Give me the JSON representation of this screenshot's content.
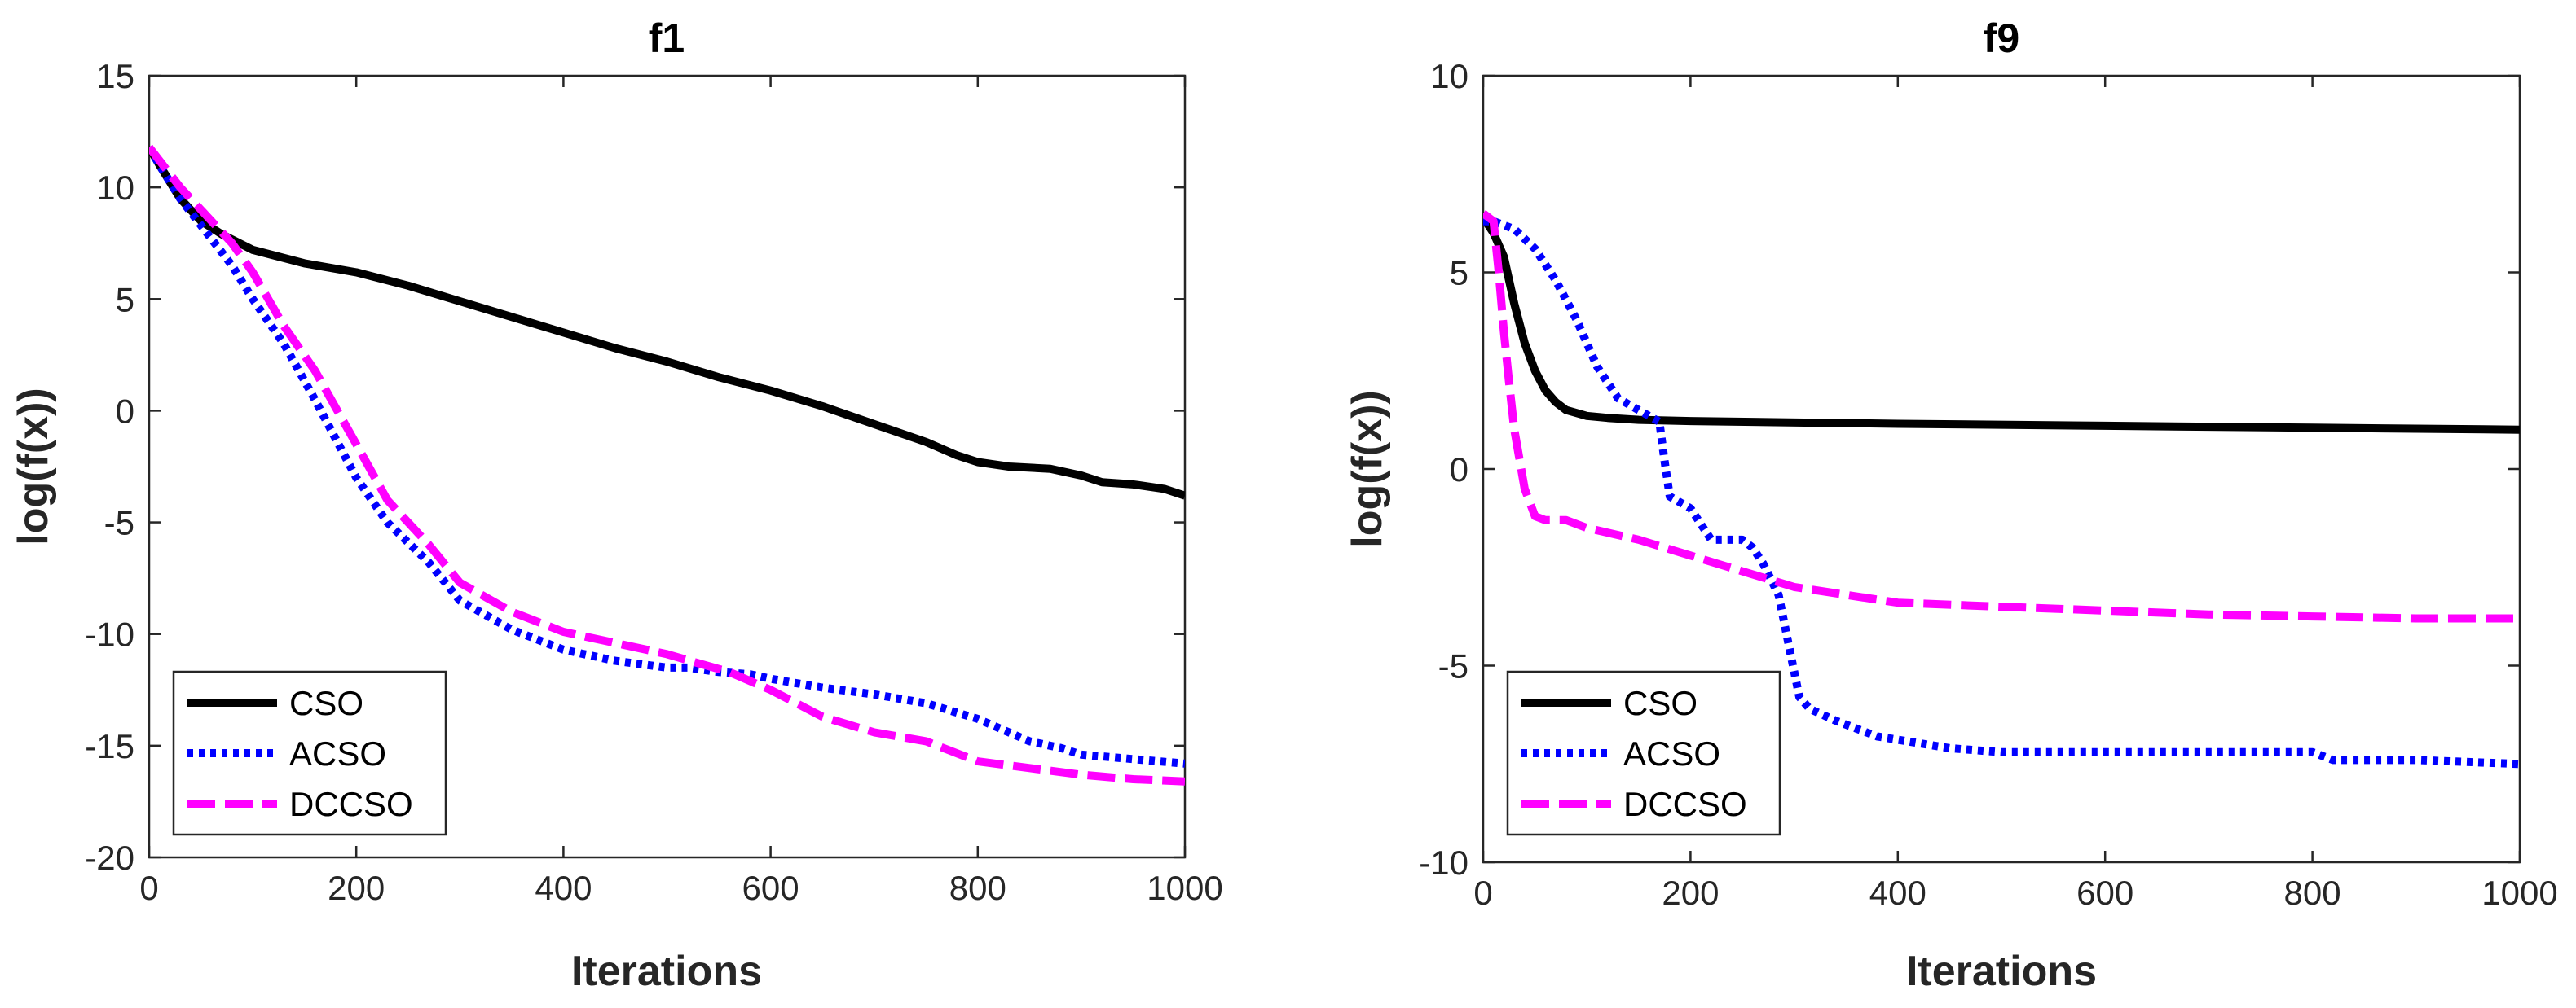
{
  "chart_data": [
    {
      "type": "line",
      "title": "f1",
      "xlabel": "Iterations",
      "ylabel": "log(f(x))",
      "xlim": [
        0,
        1000
      ],
      "ylim": [
        -20,
        15
      ],
      "xticks": [
        0,
        200,
        400,
        600,
        800,
        1000
      ],
      "yticks": [
        -20,
        -15,
        -10,
        -5,
        0,
        5,
        10,
        15
      ],
      "legend_position": "bottom-left",
      "series": [
        {
          "name": "CSO",
          "color": "#000000",
          "style": "solid",
          "x": [
            0,
            10,
            30,
            50,
            70,
            100,
            150,
            200,
            250,
            300,
            350,
            400,
            450,
            500,
            550,
            600,
            650,
            700,
            750,
            780,
            800,
            830,
            870,
            900,
            920,
            950,
            980,
            1000
          ],
          "y": [
            11.8,
            11.0,
            9.5,
            8.5,
            7.9,
            7.2,
            6.6,
            6.2,
            5.6,
            4.9,
            4.2,
            3.5,
            2.8,
            2.2,
            1.5,
            0.9,
            0.2,
            -0.6,
            -1.4,
            -2.0,
            -2.3,
            -2.5,
            -2.6,
            -2.9,
            -3.2,
            -3.3,
            -3.5,
            -3.8
          ]
        },
        {
          "name": "ACSO",
          "color": "#0000FF",
          "style": "dotted",
          "x": [
            0,
            10,
            30,
            50,
            80,
            100,
            130,
            160,
            200,
            230,
            270,
            300,
            350,
            400,
            450,
            500,
            520,
            550,
            580,
            600,
            650,
            700,
            750,
            800,
            850,
            880,
            900,
            950,
            1000
          ],
          "y": [
            11.8,
            11.0,
            9.5,
            8.3,
            6.5,
            5.0,
            3.0,
            0.5,
            -3.0,
            -5.0,
            -6.8,
            -8.5,
            -9.8,
            -10.7,
            -11.2,
            -11.5,
            -11.5,
            -11.7,
            -11.8,
            -12.0,
            -12.4,
            -12.7,
            -13.1,
            -13.8,
            -14.8,
            -15.1,
            -15.4,
            -15.6,
            -15.8
          ]
        },
        {
          "name": "DCCSO",
          "color": "#FF00FF",
          "style": "dashed",
          "x": [
            0,
            10,
            30,
            50,
            80,
            100,
            130,
            160,
            200,
            230,
            270,
            300,
            350,
            400,
            450,
            500,
            530,
            560,
            600,
            650,
            700,
            750,
            800,
            850,
            900,
            950,
            1000
          ],
          "y": [
            11.8,
            11.2,
            10.0,
            9.0,
            7.5,
            6.2,
            3.8,
            1.8,
            -1.5,
            -4.0,
            -6.0,
            -7.7,
            -9.0,
            -9.9,
            -10.4,
            -10.9,
            -11.3,
            -11.7,
            -12.5,
            -13.7,
            -14.4,
            -14.8,
            -15.7,
            -16.0,
            -16.3,
            -16.5,
            -16.6
          ]
        }
      ]
    },
    {
      "type": "line",
      "title": "f9",
      "xlabel": "Iterations",
      "ylabel": "log(f(x))",
      "xlim": [
        0,
        1000
      ],
      "ylim": [
        -10,
        10
      ],
      "xticks": [
        0,
        200,
        400,
        600,
        800,
        1000
      ],
      "yticks": [
        -10,
        -5,
        0,
        5,
        10
      ],
      "legend_position": "bottom-left",
      "series": [
        {
          "name": "CSO",
          "color": "#000000",
          "style": "solid",
          "x": [
            0,
            10,
            20,
            25,
            30,
            40,
            50,
            60,
            70,
            80,
            100,
            120,
            150,
            200,
            400,
            600,
            800,
            1000
          ],
          "y": [
            6.4,
            6.0,
            5.4,
            4.8,
            4.2,
            3.2,
            2.5,
            2.0,
            1.7,
            1.5,
            1.35,
            1.3,
            1.25,
            1.22,
            1.15,
            1.1,
            1.05,
            1.0
          ]
        },
        {
          "name": "ACSO",
          "color": "#0000FF",
          "style": "dotted",
          "x": [
            0,
            10,
            20,
            30,
            50,
            70,
            90,
            110,
            130,
            150,
            170,
            175,
            180,
            200,
            220,
            250,
            260,
            270,
            285,
            295,
            305,
            315,
            340,
            380,
            450,
            500,
            600,
            700,
            800,
            820,
            900,
            1000
          ],
          "y": [
            6.3,
            6.3,
            6.2,
            6.1,
            5.6,
            4.8,
            3.8,
            2.6,
            1.8,
            1.5,
            1.2,
            0.2,
            -0.7,
            -1.0,
            -1.8,
            -1.8,
            -2.0,
            -2.4,
            -3.2,
            -4.5,
            -5.8,
            -6.1,
            -6.4,
            -6.8,
            -7.1,
            -7.2,
            -7.2,
            -7.2,
            -7.2,
            -7.4,
            -7.4,
            -7.5
          ]
        },
        {
          "name": "DCCSO",
          "color": "#FF00FF",
          "style": "dashed",
          "x": [
            0,
            10,
            15,
            20,
            25,
            30,
            40,
            50,
            60,
            80,
            100,
            150,
            200,
            250,
            300,
            350,
            400,
            500,
            600,
            700,
            800,
            900,
            1000
          ],
          "y": [
            6.5,
            6.3,
            5.0,
            3.5,
            2.2,
            1.0,
            -0.5,
            -1.2,
            -1.3,
            -1.3,
            -1.5,
            -1.8,
            -2.2,
            -2.6,
            -3.0,
            -3.2,
            -3.4,
            -3.5,
            -3.6,
            -3.7,
            -3.75,
            -3.8,
            -3.8
          ]
        }
      ]
    }
  ]
}
